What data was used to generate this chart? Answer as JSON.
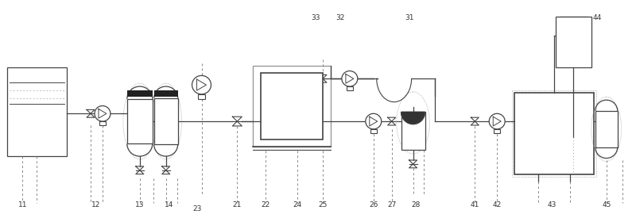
{
  "bg_color": "#ffffff",
  "lc": "#444444",
  "dc": "#888888",
  "gc": "#999999",
  "lblc": "#333333",
  "figsize": [
    8.0,
    2.7
  ],
  "dpi": 100
}
